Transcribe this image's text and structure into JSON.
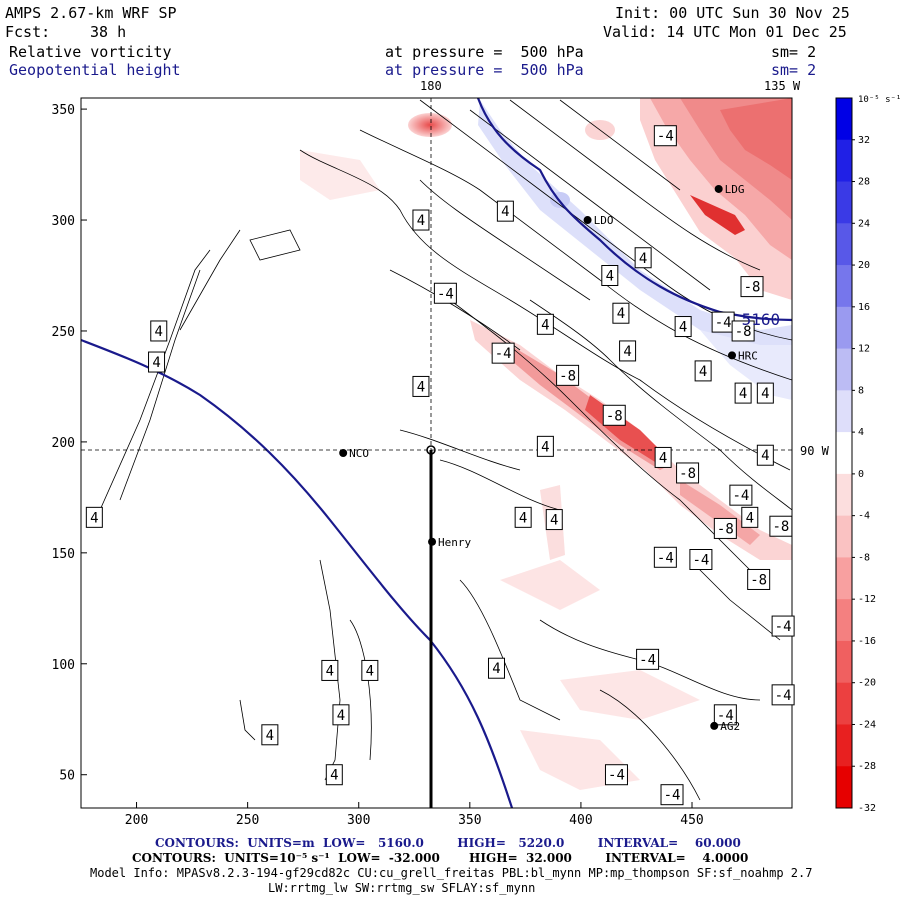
{
  "header": {
    "model": "AMPS 2.67-km WRF SP",
    "init": "Init: 00 UTC Sun 30 Nov 25",
    "fcst_label": "Fcst:",
    "fcst_value": "38 h",
    "valid": "Valid: 14 UTC Mon 01 Dec 25",
    "field1": {
      "name": "Relative vorticity",
      "level": "at pressure =  500 hPa",
      "smooth": "sm= 2"
    },
    "field2": {
      "name": "Geopotential height",
      "level": "at pressure =  500 hPa",
      "smooth": "sm= 2"
    }
  },
  "map_labels": {
    "meridian_top": "180",
    "meridian_top_right": "135 W",
    "meridian_right": "90 W"
  },
  "stations": [
    {
      "name": "NCO",
      "x": 293,
      "y": 195
    },
    {
      "name": "Henry",
      "x": 333,
      "y": 155
    },
    {
      "name": "AG2",
      "x": 460,
      "y": 72
    },
    {
      "name": "HRC",
      "x": 468,
      "y": 239
    },
    {
      "name": "LDG",
      "x": 462,
      "y": 314
    },
    {
      "name": "LDO",
      "x": 403,
      "y": 300
    }
  ],
  "chart_data": {
    "type": "heatmap",
    "x_ticks": [
      "200",
      "250",
      "300",
      "350",
      "400",
      "450"
    ],
    "y_ticks": [
      "50",
      "100",
      "150",
      "200",
      "250",
      "300",
      "350"
    ],
    "xlim": [
      175,
      495
    ],
    "ylim": [
      35,
      355
    ],
    "contour_labels": [
      {
        "v": "4",
        "x": 210,
        "y": 250
      },
      {
        "v": "4",
        "x": 209,
        "y": 236
      },
      {
        "v": "4",
        "x": 181,
        "y": 166
      },
      {
        "v": "4",
        "x": 328,
        "y": 300
      },
      {
        "v": "4",
        "x": 328,
        "y": 225
      },
      {
        "v": "-4",
        "x": 339,
        "y": 267
      },
      {
        "v": "4",
        "x": 366,
        "y": 304
      },
      {
        "v": "-4",
        "x": 365,
        "y": 240
      },
      {
        "v": "4",
        "x": 384,
        "y": 253
      },
      {
        "v": "4",
        "x": 384,
        "y": 198
      },
      {
        "v": "4",
        "x": 388,
        "y": 165
      },
      {
        "v": "-8",
        "x": 394,
        "y": 230
      },
      {
        "v": "4",
        "x": 413,
        "y": 275
      },
      {
        "v": "4",
        "x": 418,
        "y": 258
      },
      {
        "v": "4",
        "x": 421,
        "y": 241
      },
      {
        "v": "4",
        "x": 428,
        "y": 283
      },
      {
        "v": "-8",
        "x": 415,
        "y": 212
      },
      {
        "v": "4",
        "x": 446,
        "y": 252
      },
      {
        "v": "-4",
        "x": 438,
        "y": 338
      },
      {
        "v": "4",
        "x": 437,
        "y": 193
      },
      {
        "v": "-8",
        "x": 448,
        "y": 186
      },
      {
        "v": "-4",
        "x": 464,
        "y": 254
      },
      {
        "v": "4",
        "x": 455,
        "y": 232
      },
      {
        "v": "-8",
        "x": 465,
        "y": 161
      },
      {
        "v": "-4",
        "x": 472,
        "y": 176
      },
      {
        "v": "4",
        "x": 476,
        "y": 166
      },
      {
        "v": "-8",
        "x": 473,
        "y": 250
      },
      {
        "v": "-8",
        "x": 477,
        "y": 270
      },
      {
        "v": "4",
        "x": 473,
        "y": 222
      },
      {
        "v": "4",
        "x": 483,
        "y": 222
      },
      {
        "v": "4",
        "x": 483,
        "y": 194
      },
      {
        "v": "-4",
        "x": 438,
        "y": 148
      },
      {
        "v": "-4",
        "x": 454,
        "y": 147
      },
      {
        "v": "4",
        "x": 374,
        "y": 166
      },
      {
        "v": "-8",
        "x": 480,
        "y": 138
      },
      {
        "v": "-8",
        "x": 490,
        "y": 162
      },
      {
        "v": "-4",
        "x": 491,
        "y": 117
      },
      {
        "v": "-4",
        "x": 491,
        "y": 86
      },
      {
        "v": "-4",
        "x": 430,
        "y": 102
      },
      {
        "v": "4",
        "x": 362,
        "y": 98
      },
      {
        "v": "4",
        "x": 287,
        "y": 97
      },
      {
        "v": "4",
        "x": 305,
        "y": 97
      },
      {
        "v": "4",
        "x": 292,
        "y": 77
      },
      {
        "v": "4",
        "x": 260,
        "y": 68
      },
      {
        "v": "4",
        "x": 289,
        "y": 50
      },
      {
        "v": "-4",
        "x": 465,
        "y": 77
      },
      {
        "v": "-4",
        "x": 416,
        "y": 50
      },
      {
        "v": "-4",
        "x": 441,
        "y": 41
      },
      {
        "v": "5160",
        "x": 481,
        "y": 255
      }
    ],
    "colorbar": {
      "unit": "10⁻⁵ s⁻¹",
      "ticks": [
        "32",
        "28",
        "24",
        "20",
        "16",
        "12",
        "8",
        "4",
        "0",
        "-4",
        "-8",
        "-12",
        "-16",
        "-20",
        "-24",
        "-28",
        "-32"
      ],
      "colors": [
        "#0000e6",
        "#2020e6",
        "#3a3ae6",
        "#5858e8",
        "#7676ec",
        "#9a9af0",
        "#bcbcf4",
        "#dedefa",
        "#ffffff",
        "#fcdede",
        "#fac2c2",
        "#f8a0a0",
        "#f48080",
        "#f06060",
        "#ec4040",
        "#e82020",
        "#e60000"
      ]
    },
    "contours1": {
      "units": "m",
      "low": "5160.0",
      "high": "5220.0",
      "interval": "60.000"
    },
    "contours2": {
      "units": "10⁻⁵ s⁻¹",
      "low": "-32.000",
      "high": "32.000",
      "interval": "4.0000"
    }
  },
  "footer": {
    "c1": "CONTOURS:  UNITS=m  LOW=   5160.0        HIGH=   5220.0        INTERVAL=    60.000",
    "c2": "CONTOURS:  UNITS=10⁻⁵ s⁻¹  LOW=  -32.000       HIGH=  32.000        INTERVAL=    4.0000",
    "info1": "Model Info: MPASv8.2.3-194-gf29cd82c CU:cu_grell_freitas PBL:bl_mynn MP:mp_thompson SF:sf_noahmp 2.7",
    "info2": "LW:rrtmg_lw SW:rrtmg_sw SFLAY:sf_mynn"
  }
}
